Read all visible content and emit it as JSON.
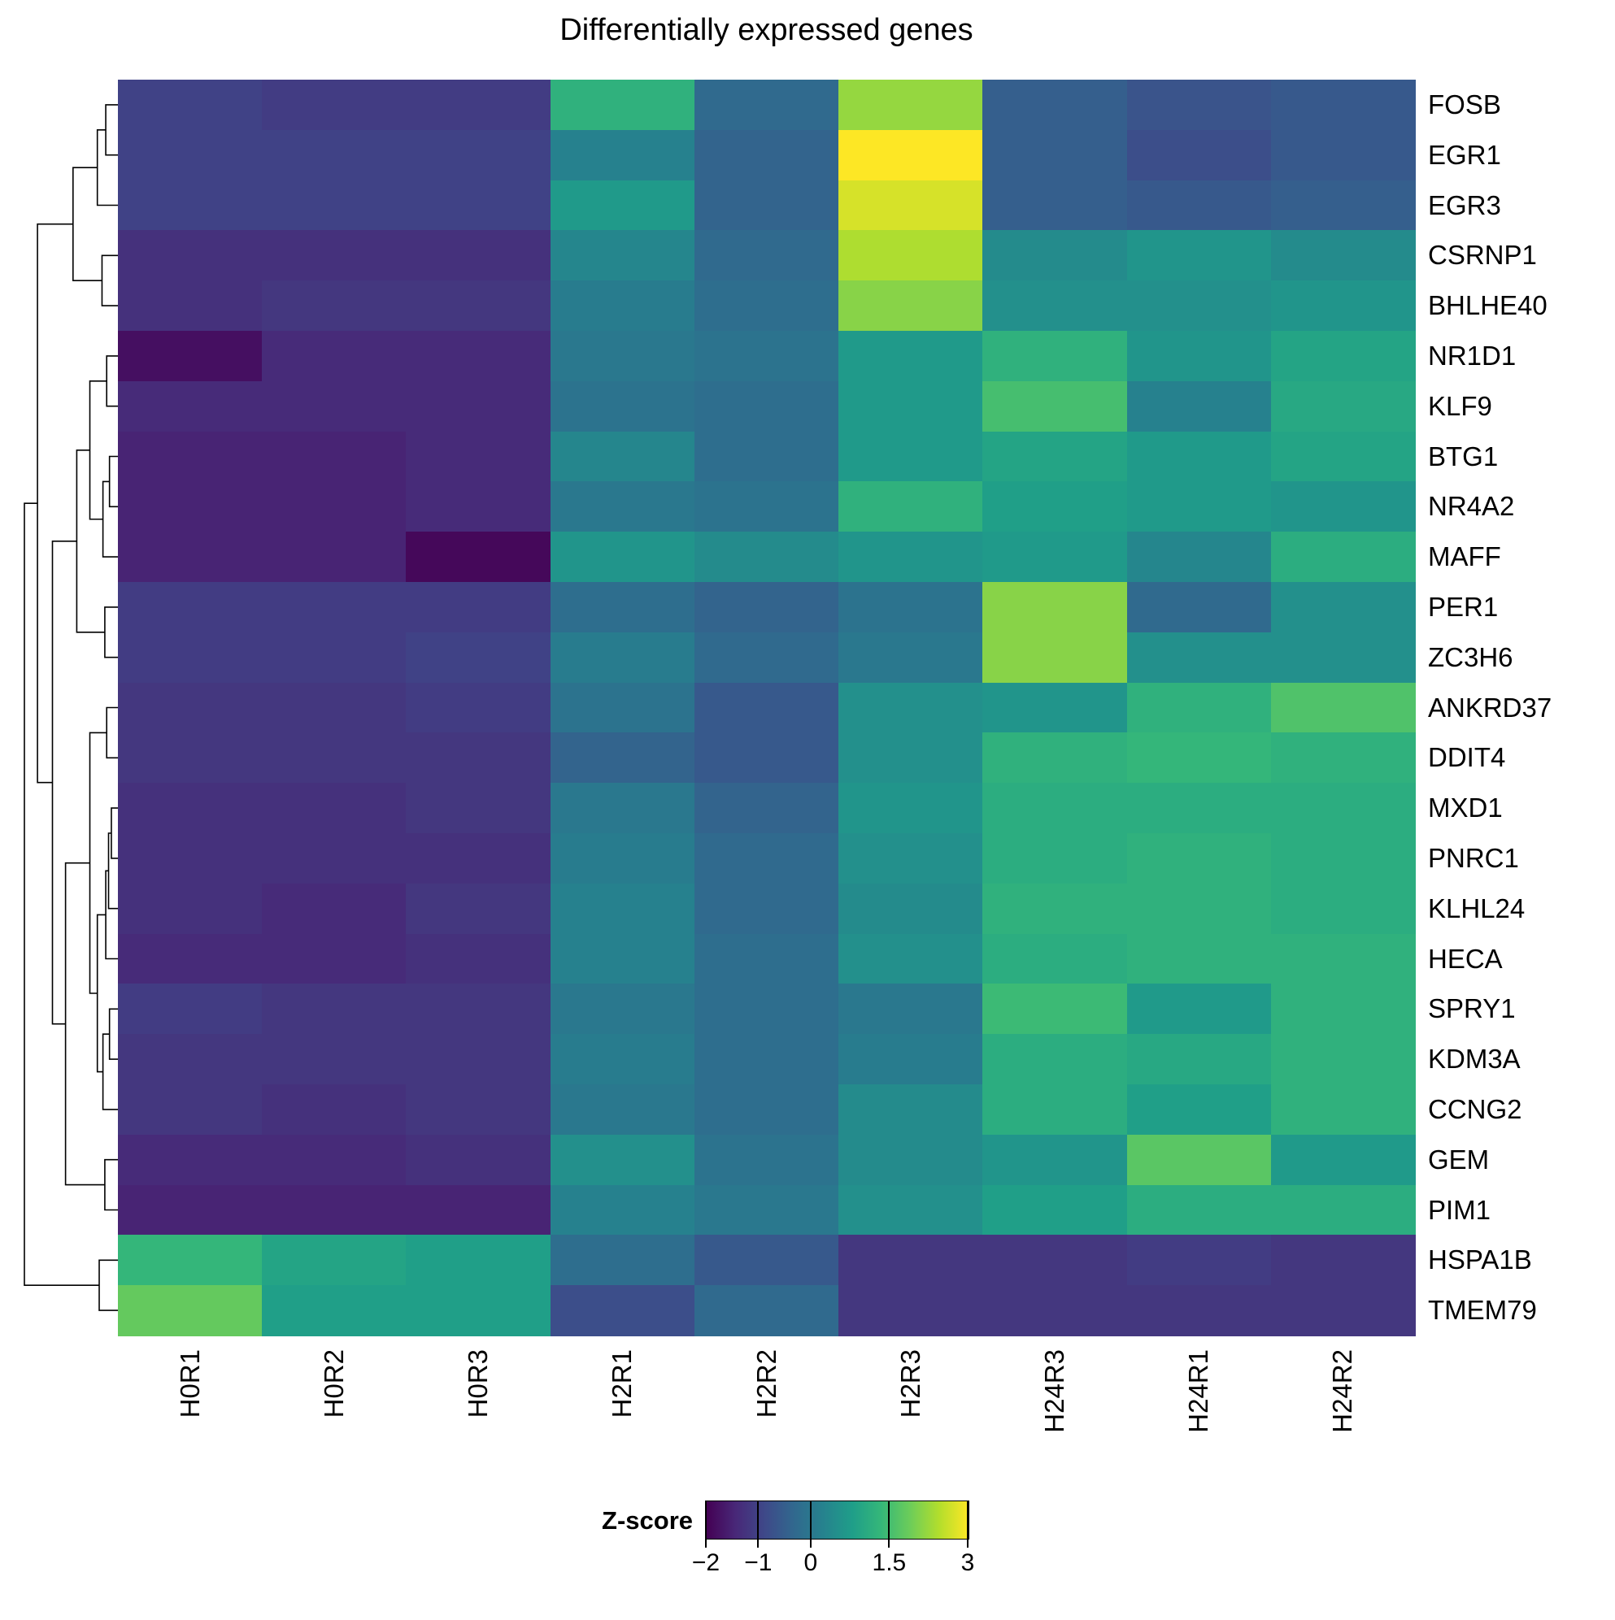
{
  "chart_data": {
    "type": "heatmap",
    "title": "Differentially expressed genes",
    "legend_label": "Z-score",
    "zlim": [
      -2,
      3
    ],
    "legend_ticks": [
      -2,
      -1,
      0,
      1.5,
      3
    ],
    "legend_tick_labels": [
      "−2",
      "−1",
      "0",
      "1.5",
      "3"
    ],
    "palette_name": "viridis",
    "palette_stops": [
      "#440154",
      "#482878",
      "#3e4989",
      "#31688e",
      "#26828e",
      "#1f9e89",
      "#35b779",
      "#6dcd59",
      "#b4de2c",
      "#fde725"
    ],
    "columns": [
      "H0R1",
      "H0R2",
      "H0R3",
      "H2R1",
      "H2R2",
      "H2R3",
      "H24R3",
      "H24R1",
      "H24R2"
    ],
    "rows": [
      "FOSB",
      "EGR1",
      "EGR3",
      "CSRNP1",
      "BHLHE40",
      "NR1D1",
      "KLF9",
      "BTG1",
      "NR4A2",
      "MAFF",
      "PER1",
      "ZC3H6",
      "ANKRD37",
      "DDIT4",
      "MXD1",
      "PNRC1",
      "KLHL24",
      "HECA",
      "SPRY1",
      "KDM3A",
      "CCNG2",
      "GEM",
      "PIM1",
      "HSPA1B",
      "TMEM79"
    ],
    "values": [
      [
        -1.0,
        -1.1,
        -1.1,
        1.2,
        -0.3,
        2.2,
        -0.5,
        -0.7,
        -0.6
      ],
      [
        -1.0,
        -1.0,
        -1.0,
        0.2,
        -0.4,
        3.0,
        -0.5,
        -0.8,
        -0.6
      ],
      [
        -1.0,
        -1.0,
        -1.0,
        0.7,
        -0.4,
        2.7,
        -0.5,
        -0.6,
        -0.5
      ],
      [
        -1.3,
        -1.3,
        -1.3,
        0.3,
        -0.3,
        2.4,
        0.4,
        0.6,
        0.4
      ],
      [
        -1.3,
        -1.2,
        -1.2,
        0.1,
        -0.2,
        2.1,
        0.5,
        0.5,
        0.6
      ],
      [
        -1.8,
        -1.4,
        -1.4,
        0.0,
        -0.1,
        0.7,
        1.2,
        0.6,
        0.9
      ],
      [
        -1.4,
        -1.4,
        -1.4,
        -0.1,
        -0.2,
        0.7,
        1.5,
        0.2,
        1.0
      ],
      [
        -1.5,
        -1.5,
        -1.4,
        0.3,
        -0.2,
        0.7,
        0.9,
        0.7,
        0.9
      ],
      [
        -1.5,
        -1.5,
        -1.4,
        0.0,
        -0.1,
        1.2,
        0.8,
        0.7,
        0.6
      ],
      [
        -1.5,
        -1.5,
        -1.9,
        0.6,
        0.4,
        0.6,
        0.7,
        0.3,
        1.1
      ],
      [
        -1.1,
        -1.1,
        -1.1,
        -0.2,
        -0.4,
        -0.1,
        2.1,
        -0.3,
        0.5
      ],
      [
        -1.1,
        -1.1,
        -1.0,
        0.1,
        -0.3,
        0.0,
        2.1,
        0.5,
        0.5
      ],
      [
        -1.2,
        -1.2,
        -1.1,
        -0.1,
        -0.6,
        0.5,
        0.6,
        1.2,
        1.6
      ],
      [
        -1.2,
        -1.2,
        -1.2,
        -0.4,
        -0.6,
        0.5,
        1.2,
        1.3,
        1.2
      ],
      [
        -1.3,
        -1.3,
        -1.2,
        0.0,
        -0.4,
        0.6,
        1.1,
        1.1,
        1.1
      ],
      [
        -1.3,
        -1.3,
        -1.3,
        0.1,
        -0.3,
        0.5,
        1.1,
        1.2,
        1.1
      ],
      [
        -1.3,
        -1.4,
        -1.2,
        0.2,
        -0.3,
        0.4,
        1.2,
        1.2,
        1.1
      ],
      [
        -1.4,
        -1.4,
        -1.3,
        0.2,
        -0.2,
        0.5,
        1.1,
        1.2,
        1.2
      ],
      [
        -1.1,
        -1.2,
        -1.2,
        0.0,
        -0.2,
        0.0,
        1.4,
        0.7,
        1.2
      ],
      [
        -1.2,
        -1.2,
        -1.2,
        0.1,
        -0.2,
        0.1,
        1.1,
        1.0,
        1.2
      ],
      [
        -1.2,
        -1.3,
        -1.2,
        0.0,
        -0.2,
        0.4,
        1.1,
        0.8,
        1.2
      ],
      [
        -1.4,
        -1.4,
        -1.3,
        0.5,
        -0.1,
        0.4,
        0.6,
        1.7,
        0.7
      ],
      [
        -1.5,
        -1.5,
        -1.5,
        0.2,
        0.0,
        0.5,
        0.8,
        1.1,
        1.1
      ],
      [
        1.3,
        0.9,
        0.8,
        -0.2,
        -0.6,
        -1.2,
        -1.2,
        -1.1,
        -1.2
      ],
      [
        1.8,
        0.8,
        0.8,
        -0.8,
        -0.3,
        -1.2,
        -1.2,
        -1.2,
        -1.2
      ]
    ],
    "row_dendrogram": {
      "h": 1.0,
      "children": [
        {
          "h": 0.86,
          "children": [
            {
              "h": 0.48,
              "children": [
                {
                  "h": 0.22,
                  "children": [
                    {
                      "h": 0.13,
                      "children": [
                        {
                          "leaf": "FOSB"
                        },
                        {
                          "leaf": "EGR1"
                        }
                      ]
                    },
                    {
                      "leaf": "EGR3"
                    }
                  ]
                },
                {
                  "h": 0.17,
                  "children": [
                    {
                      "leaf": "CSRNP1"
                    },
                    {
                      "leaf": "BHLHE40"
                    }
                  ]
                }
              ]
            },
            {
              "h": 0.7,
              "children": [
                {
                  "h": 0.44,
                  "children": [
                    {
                      "h": 0.3,
                      "children": [
                        {
                          "h": 0.12,
                          "children": [
                            {
                              "leaf": "NR1D1"
                            },
                            {
                              "leaf": "KLF9"
                            }
                          ]
                        },
                        {
                          "h": 0.16,
                          "children": [
                            {
                              "h": 0.09,
                              "children": [
                                {
                                  "leaf": "BTG1"
                                },
                                {
                                  "leaf": "NR4A2"
                                }
                              ]
                            },
                            {
                              "leaf": "MAFF"
                            }
                          ]
                        }
                      ]
                    },
                    {
                      "h": 0.14,
                      "children": [
                        {
                          "leaf": "PER1"
                        },
                        {
                          "leaf": "ZC3H6"
                        }
                      ]
                    }
                  ]
                },
                {
                  "h": 0.56,
                  "children": [
                    {
                      "h": 0.3,
                      "children": [
                        {
                          "h": 0.12,
                          "children": [
                            {
                              "leaf": "ANKRD37"
                            },
                            {
                              "leaf": "DDIT4"
                            }
                          ]
                        },
                        {
                          "h": 0.22,
                          "children": [
                            {
                              "h": 0.13,
                              "children": [
                                {
                                  "h": 0.1,
                                  "children": [
                                    {
                                      "h": 0.07,
                                      "children": [
                                        {
                                          "leaf": "MXD1"
                                        },
                                        {
                                          "leaf": "PNRC1"
                                        }
                                      ]
                                    },
                                    {
                                      "leaf": "KLHL24"
                                    }
                                  ]
                                },
                                {
                                  "leaf": "HECA"
                                }
                              ]
                            },
                            {
                              "h": 0.16,
                              "children": [
                                {
                                  "h": 0.09,
                                  "children": [
                                    {
                                      "leaf": "SPRY1"
                                    },
                                    {
                                      "leaf": "KDM3A"
                                    }
                                  ]
                                },
                                {
                                  "leaf": "CCNG2"
                                }
                              ]
                            }
                          ]
                        }
                      ]
                    },
                    {
                      "h": 0.14,
                      "children": [
                        {
                          "leaf": "GEM"
                        },
                        {
                          "leaf": "PIM1"
                        }
                      ]
                    }
                  ]
                }
              ]
            }
          ]
        },
        {
          "h": 0.2,
          "children": [
            {
              "leaf": "HSPA1B"
            },
            {
              "leaf": "TMEM79"
            }
          ]
        }
      ]
    }
  }
}
